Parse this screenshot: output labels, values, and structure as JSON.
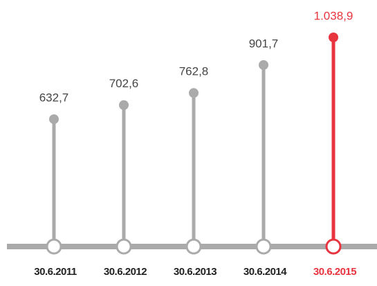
{
  "chart_data": {
    "type": "lollipop",
    "categories": [
      "30.6.2011",
      "30.6.2012",
      "30.6.2013",
      "30.6.2014",
      "30.6.2015"
    ],
    "values": [
      632.7,
      702.6,
      762.8,
      901.7,
      1038.9
    ],
    "value_labels": [
      "632,7",
      "702,6",
      "762,8",
      "901,7",
      "1.038,9"
    ],
    "colors": [
      "#aaaaaa",
      "#aaaaaa",
      "#aaaaaa",
      "#aaaaaa",
      "#e8343f"
    ]
  }
}
